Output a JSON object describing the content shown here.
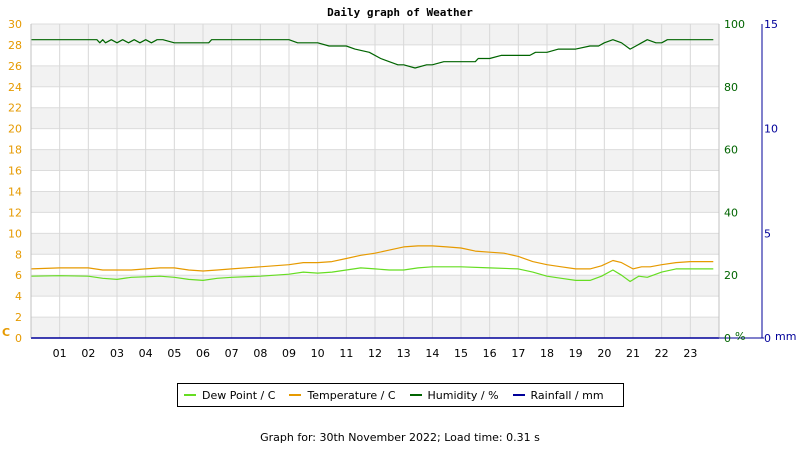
{
  "chart_data": {
    "type": "line",
    "title": "Daily graph of Weather",
    "x_ticks": [
      "01",
      "02",
      "03",
      "04",
      "05",
      "06",
      "07",
      "08",
      "09",
      "10",
      "11",
      "12",
      "13",
      "14",
      "15",
      "16",
      "17",
      "18",
      "19",
      "20",
      "21",
      "22",
      "23"
    ],
    "x_range": [
      0,
      24
    ],
    "left_axis": {
      "unit": "C",
      "ticks": [
        0,
        2,
        4,
        6,
        8,
        10,
        12,
        14,
        16,
        18,
        20,
        22,
        24,
        26,
        28,
        30
      ],
      "range": [
        0,
        30
      ],
      "color": "#e69a00"
    },
    "right_axis_1": {
      "unit": "%",
      "ticks": [
        0,
        20,
        40,
        60,
        80,
        100
      ],
      "range": [
        0,
        100
      ],
      "color": "#006400"
    },
    "right_axis_2": {
      "unit": "mm",
      "ticks": [
        0,
        5,
        10,
        15
      ],
      "range": [
        0,
        15
      ],
      "color": "#000099"
    },
    "series": [
      {
        "name": "Dew Point / C",
        "axis": "left",
        "color": "#66dd22",
        "points": [
          [
            0,
            5.9
          ],
          [
            1,
            5.95
          ],
          [
            2,
            5.9
          ],
          [
            2.5,
            5.7
          ],
          [
            3,
            5.6
          ],
          [
            3.5,
            5.8
          ],
          [
            4,
            5.85
          ],
          [
            4.5,
            5.9
          ],
          [
            5,
            5.8
          ],
          [
            5.5,
            5.6
          ],
          [
            6,
            5.5
          ],
          [
            6.5,
            5.7
          ],
          [
            7,
            5.8
          ],
          [
            8,
            5.9
          ],
          [
            9,
            6.1
          ],
          [
            9.5,
            6.3
          ],
          [
            10,
            6.2
          ],
          [
            10.5,
            6.3
          ],
          [
            11,
            6.5
          ],
          [
            11.5,
            6.7
          ],
          [
            12,
            6.6
          ],
          [
            12.5,
            6.5
          ],
          [
            13,
            6.5
          ],
          [
            13.5,
            6.7
          ],
          [
            14,
            6.8
          ],
          [
            15,
            6.8
          ],
          [
            16,
            6.7
          ],
          [
            17,
            6.6
          ],
          [
            17.5,
            6.3
          ],
          [
            18,
            5.9
          ],
          [
            18.5,
            5.7
          ],
          [
            19,
            5.5
          ],
          [
            19.5,
            5.5
          ],
          [
            19.9,
            5.9
          ],
          [
            20.3,
            6.5
          ],
          [
            20.6,
            6.0
          ],
          [
            20.9,
            5.4
          ],
          [
            21.2,
            5.9
          ],
          [
            21.5,
            5.8
          ],
          [
            22,
            6.3
          ],
          [
            22.5,
            6.6
          ],
          [
            23,
            6.6
          ],
          [
            23.8,
            6.6
          ]
        ]
      },
      {
        "name": "Temperature / C",
        "axis": "left",
        "color": "#e69a00",
        "points": [
          [
            0,
            6.6
          ],
          [
            1,
            6.7
          ],
          [
            2,
            6.7
          ],
          [
            2.5,
            6.5
          ],
          [
            3,
            6.5
          ],
          [
            3.5,
            6.5
          ],
          [
            4,
            6.6
          ],
          [
            4.5,
            6.7
          ],
          [
            5,
            6.7
          ],
          [
            5.5,
            6.5
          ],
          [
            6,
            6.4
          ],
          [
            6.5,
            6.5
          ],
          [
            7,
            6.6
          ],
          [
            8,
            6.8
          ],
          [
            9,
            7.0
          ],
          [
            9.5,
            7.2
          ],
          [
            10,
            7.2
          ],
          [
            10.5,
            7.3
          ],
          [
            11,
            7.6
          ],
          [
            11.5,
            7.9
          ],
          [
            12,
            8.1
          ],
          [
            12.5,
            8.4
          ],
          [
            13,
            8.7
          ],
          [
            13.5,
            8.8
          ],
          [
            14,
            8.8
          ],
          [
            14.5,
            8.7
          ],
          [
            15,
            8.6
          ],
          [
            15.5,
            8.3
          ],
          [
            16,
            8.2
          ],
          [
            16.5,
            8.1
          ],
          [
            17,
            7.8
          ],
          [
            17.5,
            7.3
          ],
          [
            18,
            7.0
          ],
          [
            18.5,
            6.8
          ],
          [
            19,
            6.6
          ],
          [
            19.5,
            6.6
          ],
          [
            19.9,
            6.9
          ],
          [
            20.3,
            7.4
          ],
          [
            20.6,
            7.2
          ],
          [
            21,
            6.6
          ],
          [
            21.3,
            6.8
          ],
          [
            21.6,
            6.8
          ],
          [
            22,
            7.0
          ],
          [
            22.5,
            7.2
          ],
          [
            23,
            7.3
          ],
          [
            23.8,
            7.3
          ]
        ]
      },
      {
        "name": "Humidity / %",
        "axis": "right_1",
        "color": "#006400",
        "points": [
          [
            0,
            95
          ],
          [
            2.3,
            95
          ],
          [
            2.4,
            94
          ],
          [
            2.5,
            95
          ],
          [
            2.6,
            94
          ],
          [
            2.8,
            95
          ],
          [
            3,
            94
          ],
          [
            3.2,
            95
          ],
          [
            3.4,
            94
          ],
          [
            3.6,
            95
          ],
          [
            3.8,
            94
          ],
          [
            4,
            95
          ],
          [
            4.2,
            94
          ],
          [
            4.4,
            95
          ],
          [
            4.6,
            95
          ],
          [
            5,
            94
          ],
          [
            5.6,
            94
          ],
          [
            6.2,
            94
          ],
          [
            6.3,
            95
          ],
          [
            7,
            95
          ],
          [
            8,
            95
          ],
          [
            9,
            95
          ],
          [
            9.3,
            94
          ],
          [
            10,
            94
          ],
          [
            10.4,
            93
          ],
          [
            11,
            93
          ],
          [
            11.3,
            92
          ],
          [
            11.8,
            91
          ],
          [
            12.2,
            89
          ],
          [
            12.5,
            88
          ],
          [
            12.8,
            87
          ],
          [
            13,
            87
          ],
          [
            13.4,
            86
          ],
          [
            13.8,
            87
          ],
          [
            14,
            87
          ],
          [
            14.4,
            88
          ],
          [
            15,
            88
          ],
          [
            15.5,
            88
          ],
          [
            15.6,
            89
          ],
          [
            16,
            89
          ],
          [
            16.4,
            90
          ],
          [
            17,
            90
          ],
          [
            17.4,
            90
          ],
          [
            17.6,
            91
          ],
          [
            18,
            91
          ],
          [
            18.4,
            92
          ],
          [
            19,
            92
          ],
          [
            19.5,
            93
          ],
          [
            19.8,
            93
          ],
          [
            20,
            94
          ],
          [
            20.3,
            95
          ],
          [
            20.6,
            94
          ],
          [
            20.9,
            92
          ],
          [
            21.1,
            93
          ],
          [
            21.3,
            94
          ],
          [
            21.5,
            95
          ],
          [
            21.8,
            94
          ],
          [
            22,
            94
          ],
          [
            22.2,
            95
          ],
          [
            22.4,
            95
          ],
          [
            22.6,
            95
          ],
          [
            23,
            95
          ],
          [
            23.8,
            95
          ]
        ]
      },
      {
        "name": "Rainfall / mm",
        "axis": "right_2",
        "color": "#000099",
        "points": [
          [
            0,
            0
          ],
          [
            24,
            0
          ]
        ]
      }
    ],
    "legend": [
      "Dew Point / C",
      "Temperature / C",
      "Humidity / %",
      "Rainfall / mm"
    ],
    "legend_position": "bottom",
    "grid": true
  },
  "footer_text": "Graph for: 30th November 2022; Load time: 0.31 s"
}
